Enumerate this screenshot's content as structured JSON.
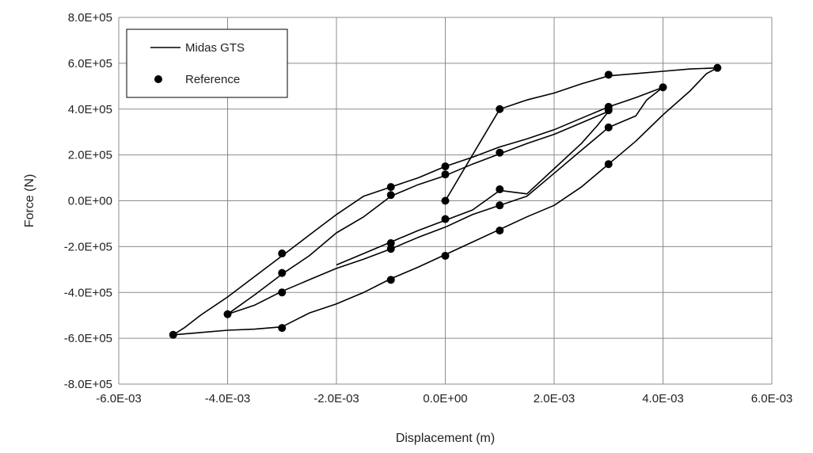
{
  "chart_data": {
    "type": "scatter",
    "title": "",
    "xlabel": "Displacement (m)",
    "ylabel": "Force (N)",
    "xlim": [
      -0.006,
      0.006
    ],
    "ylim": [
      -800000,
      800000
    ],
    "x_ticks": [
      -0.006,
      -0.004,
      -0.002,
      0.0,
      0.002,
      0.004,
      0.006
    ],
    "x_tick_labels": [
      "-6.0E-03",
      "-4.0E-03",
      "-2.0E-03",
      "0.0E+00",
      "2.0E-03",
      "4.0E-03",
      "6.0E-03"
    ],
    "y_ticks": [
      800000,
      600000,
      400000,
      200000,
      0,
      -200000,
      -400000,
      -600000,
      -800000
    ],
    "y_tick_labels": [
      "8.0E+05",
      "6.0E+05",
      "4.0E+05",
      "2.0E+05",
      "0.0E+00",
      "-2.0E+05",
      "-4.0E+05",
      "-6.0E+05",
      "-8.0E+05"
    ],
    "grid": true,
    "legend_position": "top-left",
    "series": [
      {
        "name": "Midas GTS",
        "type": "line",
        "color": "#000000",
        "x": [
          0.0,
          0.001,
          0.0015,
          0.002,
          0.0025,
          0.003,
          0.0035,
          0.004,
          0.0045,
          0.005,
          0.0048,
          0.0045,
          0.004,
          0.0035,
          0.003,
          0.0025,
          0.002,
          0.0015,
          0.001,
          0.0005,
          0.0,
          -0.0005,
          -0.001,
          -0.0015,
          -0.002,
          -0.0025,
          -0.003,
          -0.0035,
          -0.004,
          -0.0045,
          -0.005,
          -0.0048,
          -0.0045,
          -0.004,
          -0.0035,
          -0.003,
          -0.0025,
          -0.002,
          -0.0015,
          -0.001,
          -0.0005,
          0.0,
          0.0005,
          0.001,
          0.0015,
          0.002,
          0.0025,
          0.003,
          0.0035,
          0.004,
          0.0037,
          0.0035,
          0.003,
          0.0025,
          0.002,
          0.0015,
          0.001,
          0.0005,
          0.0,
          -0.0005,
          -0.001,
          -0.0015,
          -0.002,
          -0.0025,
          -0.003,
          -0.0035,
          -0.004,
          -0.0035,
          -0.003,
          -0.0025,
          -0.002,
          -0.0015,
          -0.001,
          -0.0005,
          0.0,
          0.0005,
          0.001,
          0.0015,
          0.002,
          0.0025,
          0.003,
          0.0028,
          0.0025,
          0.002,
          0.0015,
          0.001,
          0.0005,
          0.0,
          -0.0005,
          -0.001,
          -0.0015,
          -0.002
        ],
        "y": [
          0,
          400000,
          440000,
          470000,
          510000,
          545000,
          555000,
          565000,
          575000,
          580000,
          555000,
          480000,
          375000,
          260000,
          160000,
          60000,
          -20000,
          -70000,
          -125000,
          -180000,
          -235000,
          -290000,
          -340000,
          -400000,
          -450000,
          -490000,
          -550000,
          -560000,
          -565000,
          -575000,
          -585000,
          -555000,
          -500000,
          -420000,
          -330000,
          -240000,
          -150000,
          -60000,
          20000,
          60000,
          100000,
          150000,
          190000,
          235000,
          270000,
          310000,
          360000,
          410000,
          450000,
          495000,
          440000,
          370000,
          320000,
          220000,
          120000,
          20000,
          -20000,
          -60000,
          -115000,
          -160000,
          -210000,
          -255000,
          -295000,
          -345000,
          -395000,
          -455000,
          -495000,
          -410000,
          -320000,
          -240000,
          -140000,
          -70000,
          20000,
          70000,
          110000,
          160000,
          205000,
          250000,
          290000,
          340000,
          390000,
          330000,
          250000,
          140000,
          30000,
          45000,
          -40000,
          -85000,
          -130000,
          -180000,
          -230000,
          -280000
        ]
      },
      {
        "name": "Reference",
        "type": "scatter",
        "color": "#000000",
        "x": [
          0.0,
          0.001,
          0.003,
          0.005,
          0.004,
          0.003,
          0.003,
          0.001,
          0.001,
          0.0,
          -0.001,
          -0.001,
          -0.003,
          -0.003,
          -0.005,
          -0.004,
          -0.003,
          -0.001,
          -0.001,
          0.0,
          0.0,
          0.001,
          0.003,
          0.003,
          0.001,
          0.0,
          -0.001,
          -0.003
        ],
        "y": [
          0,
          400000,
          550000,
          580000,
          495000,
          320000,
          160000,
          50000,
          -130000,
          -240000,
          -345000,
          -185000,
          -400000,
          -555000,
          -585000,
          -495000,
          -315000,
          25000,
          60000,
          115000,
          150000,
          210000,
          395000,
          410000,
          -20000,
          -80000,
          -210000,
          -230000
        ]
      }
    ]
  }
}
